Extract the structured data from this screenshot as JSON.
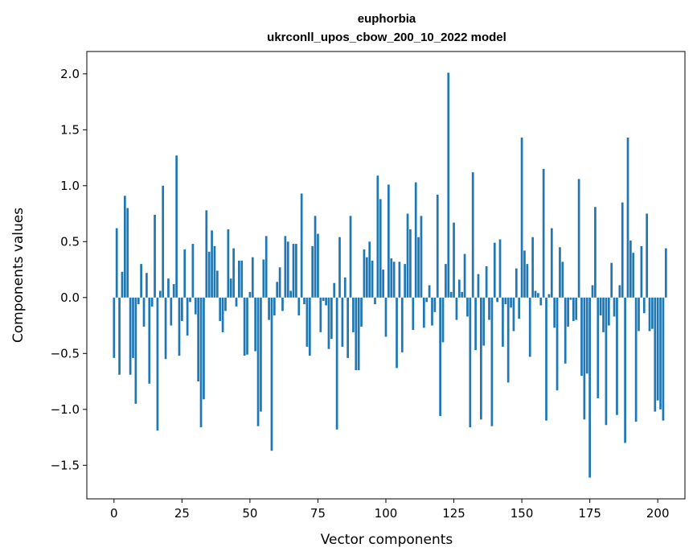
{
  "chart_data": {
    "type": "bar",
    "title": "euphorbia",
    "subtitle": "ukrconll_upos_cbow_200_10_2022 model",
    "xlabel": "Vector components",
    "ylabel": "Components values",
    "xlim": [
      -10,
      210
    ],
    "ylim": [
      -1.8,
      2.2
    ],
    "xticks": [
      0,
      25,
      50,
      75,
      100,
      125,
      150,
      175,
      200
    ],
    "xtick_labels": [
      "0",
      "25",
      "50",
      "75",
      "100",
      "125",
      "150",
      "175",
      "200"
    ],
    "yticks": [
      -1.5,
      -1.0,
      -0.5,
      0.0,
      0.5,
      1.0,
      1.5,
      2.0
    ],
    "ytick_labels": [
      "−1.5",
      "−1.0",
      "−0.5",
      "0.0",
      "0.5",
      "1.0",
      "1.5",
      "2.0"
    ],
    "grid": false,
    "bar_color": "#1f77b4",
    "values": [
      -0.54,
      0.62,
      -0.69,
      0.23,
      0.91,
      0.8,
      -0.69,
      -0.54,
      -0.95,
      -0.06,
      0.3,
      -0.26,
      0.22,
      -0.77,
      -0.08,
      0.74,
      -1.19,
      0.06,
      1.0,
      -0.55,
      0.17,
      -0.25,
      0.12,
      1.27,
      -0.52,
      -0.21,
      0.43,
      -0.34,
      -0.04,
      0.48,
      -0.15,
      -0.75,
      -1.16,
      -0.91,
      0.78,
      0.41,
      0.6,
      0.46,
      0.24,
      -0.21,
      -0.31,
      -0.12,
      0.61,
      0.17,
      0.44,
      -0.08,
      0.33,
      0.33,
      -0.52,
      -0.51,
      0.05,
      0.36,
      -0.48,
      -1.15,
      -1.02,
      0.34,
      0.55,
      -0.2,
      -1.37,
      -0.16,
      0.14,
      0.27,
      -0.12,
      0.55,
      0.5,
      0.06,
      0.48,
      0.48,
      -0.16,
      0.93,
      -0.06,
      -0.44,
      -0.52,
      0.46,
      0.73,
      0.57,
      -0.31,
      -0.03,
      -0.07,
      -0.46,
      -0.37,
      0.13,
      -1.18,
      0.54,
      -0.44,
      0.18,
      -0.54,
      0.73,
      -0.31,
      -0.65,
      -0.65,
      -0.26,
      0.43,
      0.36,
      0.5,
      0.33,
      -0.06,
      1.09,
      0.88,
      0.25,
      -0.35,
      1.01,
      0.35,
      0.32,
      -0.63,
      0.32,
      -0.49,
      0.3,
      0.75,
      0.61,
      -0.29,
      1.03,
      0.54,
      0.73,
      -0.27,
      -0.04,
      0.11,
      -0.25,
      -0.13,
      0.92,
      -1.06,
      -0.4,
      0.3,
      2.01,
      0.05,
      0.67,
      -0.2,
      0.16,
      0.05,
      0.39,
      -0.17,
      -1.16,
      1.12,
      -0.47,
      0.21,
      -1.09,
      -0.43,
      0.28,
      -0.2,
      -1.15,
      0.49,
      -0.04,
      0.52,
      -0.44,
      -0.06,
      -0.76,
      -0.09,
      -0.3,
      0.26,
      -0.19,
      1.43,
      0.42,
      0.3,
      -0.53,
      0.54,
      0.06,
      0.04,
      -0.07,
      1.15,
      -1.1,
      0.03,
      0.62,
      -0.27,
      -0.83,
      0.45,
      0.32,
      -0.59,
      -0.26,
      -0.02,
      -0.21,
      -0.2,
      1.06,
      -0.7,
      -1.09,
      -0.68,
      -1.61,
      0.11,
      0.81,
      -0.9,
      -0.16,
      -0.31,
      -1.14,
      -0.25,
      0.31,
      -0.17,
      -1.05,
      0.11,
      0.85,
      -1.3,
      1.43,
      0.51,
      0.4,
      -1.11,
      -0.3,
      0.46,
      -0.14,
      0.75,
      -0.3,
      -0.28,
      -1.02,
      -0.92,
      -1.0,
      -1.1,
      0.44
    ]
  }
}
